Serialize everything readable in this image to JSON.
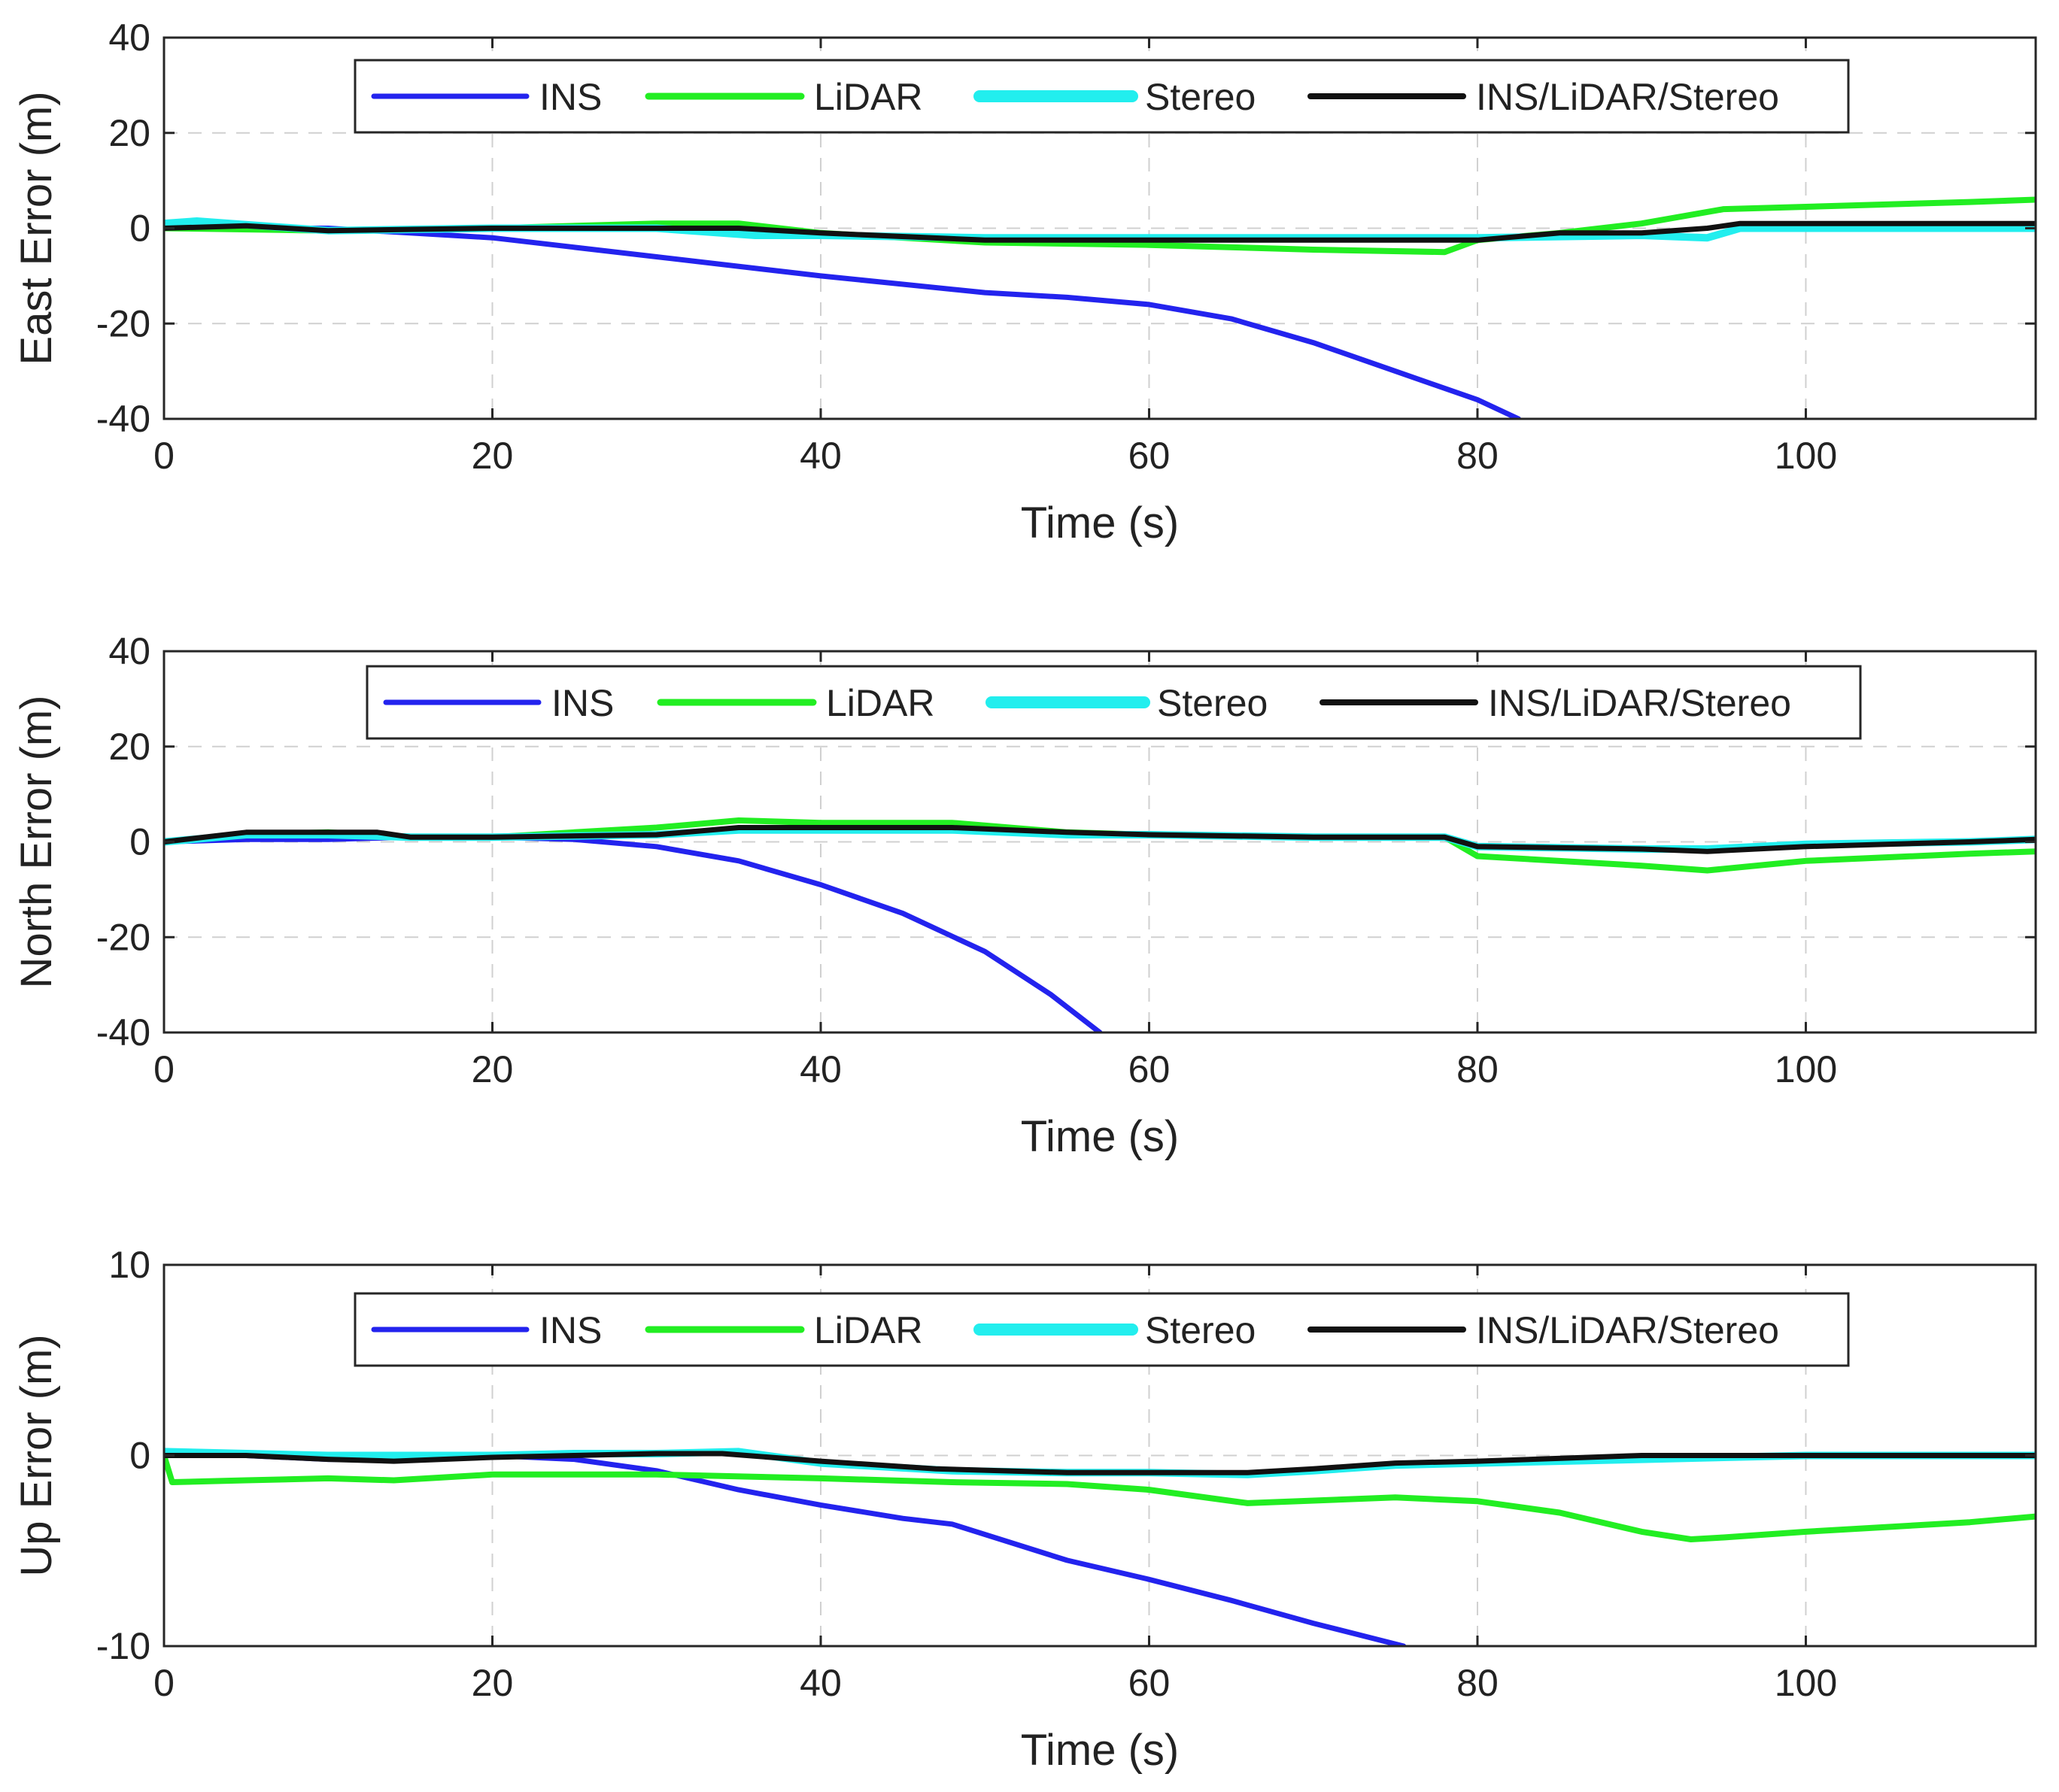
{
  "figure": {
    "background": "#ffffff",
    "grid_color": "#d0d0d0",
    "axis_color": "#262626"
  },
  "legend_colors": {
    "INS": "#2323ee",
    "LiDAR": "#22ee22",
    "Stereo": "#22eeee",
    "INS/LiDAR/Stereo": "#111111"
  },
  "chart_data": [
    {
      "type": "line",
      "xlabel": "Time (s)",
      "ylabel": "East Error (m)",
      "xlim": [
        0,
        114
      ],
      "ylim": [
        -40,
        40
      ],
      "xticks": [
        0,
        20,
        40,
        60,
        80,
        100
      ],
      "xtick_labels": [
        "0",
        "20",
        "40",
        "60",
        "80",
        "100"
      ],
      "yticks": [
        -40,
        -20,
        0,
        20,
        40
      ],
      "ytick_labels": [
        "-40",
        "-20",
        "0",
        "20",
        "40"
      ],
      "grid": true,
      "legend": "top-center, horizontal",
      "series": [
        {
          "name": "INS",
          "color": "#2323ee",
          "x": [
            0,
            10,
            15,
            20,
            30,
            40,
            50,
            55,
            60,
            65,
            70,
            75,
            80,
            82.5
          ],
          "y": [
            0,
            0,
            -1,
            -2,
            -6,
            -10,
            -13.5,
            -14.5,
            -16,
            -19,
            -24,
            -30,
            -36,
            -40
          ]
        },
        {
          "name": "LiDAR",
          "color": "#22ee22",
          "x": [
            0,
            10,
            20,
            30,
            35,
            40,
            50,
            60,
            70,
            78,
            80,
            85,
            90,
            95,
            100,
            110,
            114
          ],
          "y": [
            0,
            -0.5,
            0,
            1,
            1,
            -1,
            -3,
            -3.5,
            -4.5,
            -5,
            -2.5,
            -1,
            1,
            4,
            4.5,
            5.5,
            6
          ]
        },
        {
          "name": "Stereo",
          "color": "#22eeee",
          "x": [
            0,
            2,
            10,
            20,
            30,
            36,
            40,
            50,
            60,
            70,
            80,
            90,
            94,
            96,
            100,
            110,
            114
          ],
          "y": [
            1,
            1.5,
            -0.5,
            0,
            0,
            -1.5,
            -1.5,
            -2,
            -2,
            -2,
            -2,
            -1.5,
            -2,
            0,
            0,
            0,
            0
          ]
        },
        {
          "name": "INS/LiDAR/Stereo",
          "color": "#111111",
          "x": [
            0,
            5,
            10,
            20,
            30,
            35,
            40,
            50,
            60,
            70,
            80,
            85,
            90,
            94,
            96,
            100,
            110,
            114
          ],
          "y": [
            0,
            0.5,
            -0.5,
            0,
            0,
            0,
            -1,
            -2.5,
            -2.5,
            -2.5,
            -2.5,
            -1,
            -1,
            0,
            1,
            1,
            1,
            1
          ]
        }
      ]
    },
    {
      "type": "line",
      "xlabel": "Time (s)",
      "ylabel": "North Error (m)",
      "xlim": [
        0,
        114
      ],
      "ylim": [
        -40,
        40
      ],
      "xticks": [
        0,
        20,
        40,
        60,
        80,
        100
      ],
      "xtick_labels": [
        "0",
        "20",
        "40",
        "60",
        "80",
        "100"
      ],
      "yticks": [
        -40,
        -20,
        0,
        20,
        40
      ],
      "ytick_labels": [
        "-40",
        "-20",
        "0",
        "20",
        "40"
      ],
      "grid": true,
      "legend": "top-center, horizontal",
      "series": [
        {
          "name": "INS",
          "color": "#2323ee",
          "x": [
            0,
            5,
            10,
            15,
            20,
            25,
            30,
            35,
            40,
            45,
            50,
            54,
            57
          ],
          "y": [
            0,
            0.5,
            0.5,
            1,
            1,
            0.5,
            -1,
            -4,
            -9,
            -15,
            -23,
            -32,
            -40
          ]
        },
        {
          "name": "LiDAR",
          "color": "#22ee22",
          "x": [
            0,
            5,
            10,
            15,
            20,
            25,
            30,
            35,
            40,
            48,
            55,
            60,
            70,
            78,
            80,
            90,
            94,
            100,
            110,
            114
          ],
          "y": [
            0,
            1.5,
            2,
            1,
            1,
            2,
            3,
            4.5,
            4,
            4,
            2,
            1.5,
            1,
            1,
            -3,
            -5,
            -6,
            -4,
            -2.5,
            -2
          ]
        },
        {
          "name": "Stereo",
          "color": "#22eeee",
          "x": [
            0,
            5,
            10,
            15,
            20,
            30,
            35,
            40,
            48,
            55,
            60,
            70,
            78,
            80,
            90,
            94,
            100,
            110,
            114
          ],
          "y": [
            0,
            1.5,
            1.5,
            1,
            1,
            1.5,
            2.5,
            2.5,
            2.5,
            1.5,
            1.5,
            1,
            1,
            -1,
            -1.5,
            -1.5,
            -0.5,
            0,
            0.5
          ]
        },
        {
          "name": "INS/LiDAR/Stereo",
          "color": "#111111",
          "x": [
            0,
            5,
            10,
            13,
            15,
            20,
            30,
            35,
            40,
            48,
            55,
            60,
            70,
            78,
            80,
            90,
            94,
            100,
            110,
            114
          ],
          "y": [
            0,
            2,
            2,
            2,
            1,
            1,
            1.5,
            3,
            3,
            3,
            2,
            1.5,
            1,
            1,
            -1,
            -1.5,
            -2,
            -1,
            0,
            0.5
          ]
        }
      ]
    },
    {
      "type": "line",
      "xlabel": "Time (s)",
      "ylabel": "Up Error (m)",
      "xlim": [
        0,
        114
      ],
      "ylim": [
        -10,
        10
      ],
      "xticks": [
        0,
        20,
        40,
        60,
        80,
        100
      ],
      "xtick_labels": [
        "0",
        "20",
        "40",
        "60",
        "80",
        "100"
      ],
      "yticks": [
        -10,
        0,
        10
      ],
      "ytick_labels": [
        "-10",
        "0",
        "10"
      ],
      "grid": true,
      "legend": "top-center, horizontal",
      "series": [
        {
          "name": "INS",
          "color": "#2323ee",
          "x": [
            0,
            5,
            10,
            15,
            20,
            25,
            30,
            35,
            40,
            45,
            48,
            55,
            60,
            65,
            70,
            75.5
          ],
          "y": [
            0,
            0,
            -0.2,
            -0.2,
            0,
            -0.2,
            -0.8,
            -1.8,
            -2.6,
            -3.3,
            -3.6,
            -5.5,
            -6.5,
            -7.6,
            -8.8,
            -10
          ]
        },
        {
          "name": "LiDAR",
          "color": "#22ee22",
          "x": [
            0,
            0.5,
            5,
            10,
            14,
            20,
            30,
            40,
            48,
            55,
            60,
            66,
            75,
            80,
            85,
            90,
            93,
            95,
            100,
            110,
            114
          ],
          "y": [
            0,
            -1.4,
            -1.3,
            -1.2,
            -1.3,
            -1,
            -1,
            -1.2,
            -1.4,
            -1.5,
            -1.8,
            -2.5,
            -2.2,
            -2.4,
            -3,
            -4,
            -4.4,
            -4.3,
            -4,
            -3.5,
            -3.2
          ]
        },
        {
          "name": "Stereo",
          "color": "#22eeee",
          "x": [
            0,
            10,
            20,
            25,
            30,
            35,
            40,
            48,
            55,
            60,
            66,
            70,
            75,
            80,
            90,
            100,
            110,
            114
          ],
          "y": [
            0.2,
            0,
            0,
            0.1,
            0.1,
            0.2,
            -0.4,
            -0.8,
            -0.9,
            -0.9,
            -1,
            -0.8,
            -0.5,
            -0.4,
            -0.2,
            0,
            0,
            0
          ]
        },
        {
          "name": "INS/LiDAR/Stereo",
          "color": "#111111",
          "x": [
            0,
            5,
            10,
            14,
            20,
            25,
            30,
            34,
            40,
            47,
            55,
            60,
            66,
            70,
            75,
            80,
            90,
            100,
            110,
            114
          ],
          "y": [
            0,
            0,
            -0.2,
            -0.3,
            -0.1,
            0,
            0.1,
            0.1,
            -0.3,
            -0.7,
            -0.9,
            -0.9,
            -0.9,
            -0.7,
            -0.4,
            -0.3,
            0,
            0,
            0,
            0
          ]
        }
      ]
    }
  ]
}
